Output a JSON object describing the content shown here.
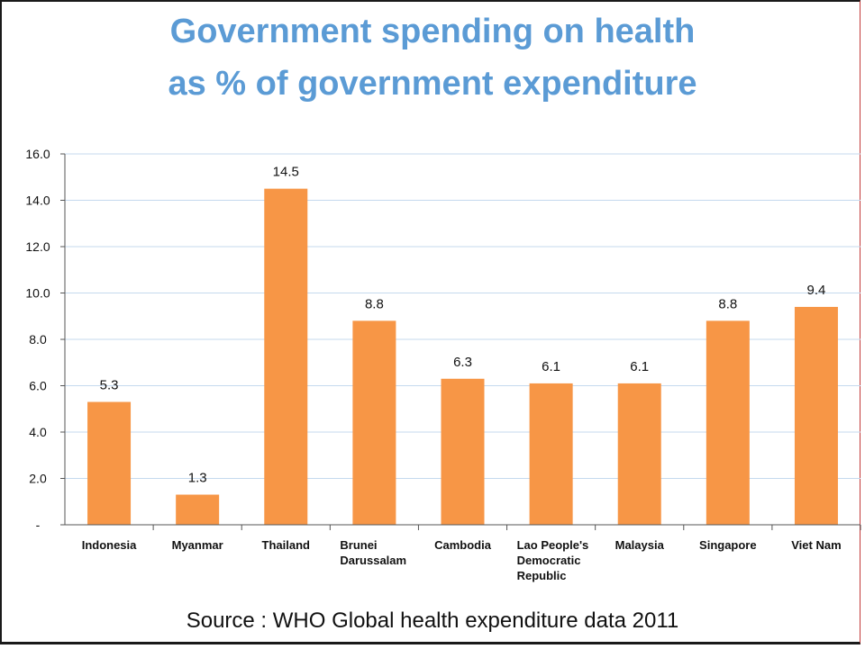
{
  "title_lines": [
    "Government spending on health",
    "as % of government expenditure"
  ],
  "source": "Source : WHO Global health expenditure data 2011",
  "colors": {
    "bar": "#f79646",
    "grid": "#c5d9ee",
    "title": "#5b9bd5"
  },
  "chart_data": {
    "type": "bar",
    "title": "Government spending on health as % of government expenditure",
    "categories": [
      [
        "Indonesia"
      ],
      [
        "Myanmar"
      ],
      [
        "Thailand"
      ],
      [
        "Brunei",
        "Darussalam"
      ],
      [
        "Cambodia"
      ],
      [
        "Lao People's",
        "Democratic",
        "Republic"
      ],
      [
        "Malaysia"
      ],
      [
        "Singapore"
      ],
      [
        "Viet Nam"
      ]
    ],
    "values": [
      5.3,
      1.3,
      14.5,
      8.8,
      6.3,
      6.1,
      6.1,
      8.8,
      9.4
    ],
    "data_labels": [
      "5.3",
      "1.3",
      "14.5",
      "8.8",
      "6.3",
      "6.1",
      "6.1",
      "8.8",
      "9.4"
    ],
    "yticks": [
      0,
      2,
      4,
      6,
      8,
      10,
      12,
      14,
      16
    ],
    "ytick_labels": [
      "-",
      "2.0",
      "4.0",
      "6.0",
      "8.0",
      "10.0",
      "12.0",
      "14.0",
      "16.0"
    ],
    "ylim": [
      0,
      16
    ],
    "grid": true,
    "xlabel": "",
    "ylabel": ""
  }
}
